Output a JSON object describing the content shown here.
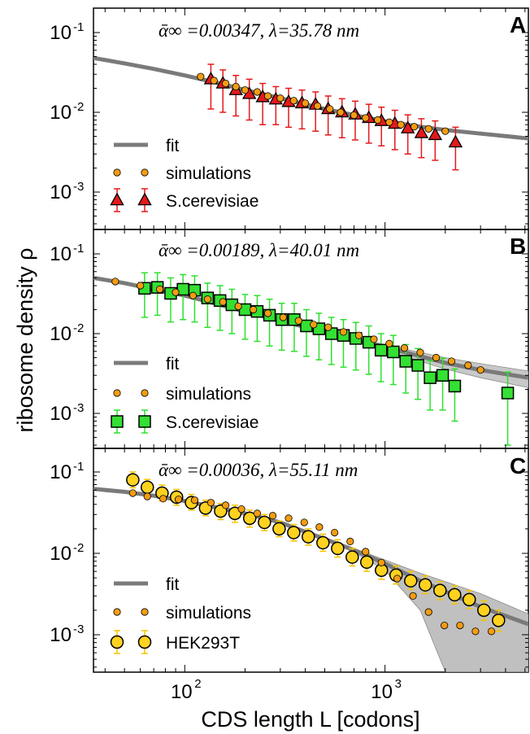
{
  "figure": {
    "ylabel": "ribosome density ρ",
    "xlabel": "CDS length L [codons]",
    "x_ticks": [
      "10^2",
      "10^3"
    ],
    "y_ticks": [
      "10^-1",
      "10^-2",
      "10^-3"
    ]
  },
  "chart_data": [
    {
      "type": "scatter",
      "panel_letter": "A",
      "annotation": "ᾱ∞ =0.00347, λ=35.78 nm",
      "x_scale": "log",
      "y_scale": "log",
      "xlim": [
        35,
        5200
      ],
      "ylim": [
        0.0005,
        0.2
      ],
      "legend": {
        "position": "bottom-left",
        "entries": [
          "fit",
          "simulations",
          "S.cerevisiae"
        ]
      },
      "colors": {
        "fit": "#7a7a7a",
        "simulations": "#f39c12",
        "experiment": "#e31a1c",
        "errorbar": "#e31a1c"
      },
      "series": [
        {
          "name": "fit",
          "kind": "line",
          "x": [
            35,
            50,
            70,
            100,
            150,
            200,
            300,
            500,
            700,
            1000,
            1500,
            2000,
            3000,
            5200
          ],
          "y": [
            0.048,
            0.041,
            0.035,
            0.029,
            0.023,
            0.019,
            0.015,
            0.011,
            0.0092,
            0.0077,
            0.0066,
            0.006,
            0.0054,
            0.0047
          ]
        },
        {
          "name": "simulations",
          "kind": "points",
          "x": [
            120,
            140,
            160,
            180,
            200,
            230,
            260,
            300,
            350,
            400,
            460,
            530,
            600,
            700,
            800,
            920,
            1050,
            1200,
            1400,
            1650,
            2000
          ],
          "y": [
            0.028,
            0.025,
            0.023,
            0.021,
            0.019,
            0.018,
            0.016,
            0.015,
            0.014,
            0.013,
            0.012,
            0.011,
            0.01,
            0.0092,
            0.0085,
            0.008,
            0.0075,
            0.007,
            0.0066,
            0.0062,
            0.0058
          ]
        },
        {
          "name": "S.cerevisiae",
          "kind": "markers",
          "marker": "triangle",
          "x": [
            135,
            155,
            180,
            210,
            245,
            285,
            330,
            385,
            450,
            520,
            610,
            710,
            830,
            960,
            1120,
            1300,
            1520,
            1780,
            2250
          ],
          "y": [
            0.026,
            0.023,
            0.019,
            0.017,
            0.0155,
            0.0145,
            0.0135,
            0.013,
            0.0125,
            0.011,
            0.01,
            0.0094,
            0.0085,
            0.0078,
            0.0072,
            0.0063,
            0.0055,
            0.0052,
            0.0042
          ],
          "err_low": [
            0.011,
            0.01,
            0.009,
            0.008,
            0.007,
            0.007,
            0.0065,
            0.0062,
            0.0058,
            0.0052,
            0.0048,
            0.0045,
            0.0041,
            0.0038,
            0.0034,
            0.003,
            0.0027,
            0.0025,
            0.0019
          ],
          "err_high": [
            0.04,
            0.034,
            0.029,
            0.026,
            0.023,
            0.021,
            0.02,
            0.019,
            0.018,
            0.016,
            0.0148,
            0.0138,
            0.0126,
            0.0116,
            0.0106,
            0.0093,
            0.0083,
            0.0078,
            0.0065
          ]
        }
      ]
    },
    {
      "type": "scatter",
      "panel_letter": "B",
      "annotation": "ᾱ∞ =0.00189, λ=40.01 nm",
      "x_scale": "log",
      "y_scale": "log",
      "xlim": [
        35,
        5200
      ],
      "ylim": [
        0.0004,
        0.2
      ],
      "legend": {
        "position": "bottom-left",
        "entries": [
          "fit",
          "simulations",
          "S.cerevisiae"
        ]
      },
      "colors": {
        "fit": "#7a7a7a",
        "band": "#c8c8c8",
        "simulations": "#f39c12",
        "experiment": "#33e033",
        "errorbar": "#2ee02e"
      },
      "series": [
        {
          "name": "fit",
          "kind": "line",
          "x": [
            35,
            50,
            70,
            100,
            150,
            200,
            300,
            500,
            700,
            1000,
            1500,
            2000,
            3000,
            5200
          ],
          "y": [
            0.05,
            0.043,
            0.036,
            0.03,
            0.023,
            0.019,
            0.0145,
            0.0105,
            0.0085,
            0.0068,
            0.0052,
            0.0043,
            0.0035,
            0.0028
          ],
          "band_low": [
            0.05,
            0.043,
            0.036,
            0.03,
            0.023,
            0.019,
            0.0143,
            0.0102,
            0.008,
            0.0062,
            0.0045,
            0.0036,
            0.0028,
            0.0021
          ],
          "band_high": [
            0.05,
            0.043,
            0.036,
            0.03,
            0.023,
            0.019,
            0.0147,
            0.0108,
            0.0089,
            0.0073,
            0.0058,
            0.005,
            0.0042,
            0.0034
          ]
        },
        {
          "name": "simulations",
          "kind": "points",
          "x": [
            45,
            60,
            75,
            90,
            110,
            130,
            155,
            185,
            220,
            260,
            310,
            370,
            440,
            520,
            620,
            740,
            880,
            1050,
            1250,
            1500,
            1800,
            2150,
            2600,
            3000
          ],
          "y": [
            0.045,
            0.04,
            0.036,
            0.033,
            0.03,
            0.027,
            0.025,
            0.022,
            0.02,
            0.018,
            0.016,
            0.0145,
            0.013,
            0.012,
            0.0105,
            0.0095,
            0.0085,
            0.0075,
            0.0066,
            0.0058,
            0.005,
            0.0045,
            0.004,
            0.0035
          ]
        },
        {
          "name": "S.cerevisiae",
          "kind": "markers",
          "marker": "square",
          "x": [
            63,
            73,
            85,
            98,
            112,
            130,
            150,
            172,
            200,
            230,
            265,
            305,
            352,
            405,
            468,
            540,
            620,
            715,
            830,
            955,
            1100,
            1270,
            1460,
            1680,
            1940,
            2230,
            4100
          ],
          "y": [
            0.037,
            0.038,
            0.032,
            0.036,
            0.035,
            0.028,
            0.026,
            0.023,
            0.02,
            0.019,
            0.017,
            0.015,
            0.015,
            0.0125,
            0.0115,
            0.01,
            0.0095,
            0.0087,
            0.0078,
            0.0062,
            0.0059,
            0.0045,
            0.004,
            0.0028,
            0.003,
            0.0022,
            0.0018
          ],
          "err_low": [
            0.016,
            0.017,
            0.014,
            0.015,
            0.014,
            0.012,
            0.011,
            0.01,
            0.0085,
            0.008,
            0.007,
            0.0062,
            0.006,
            0.0052,
            0.0047,
            0.0041,
            0.0038,
            0.0035,
            0.0031,
            0.0025,
            0.0023,
            0.0018,
            0.0015,
            0.0011,
            0.0011,
            0.0008,
            0.0004
          ],
          "err_high": [
            0.058,
            0.058,
            0.05,
            0.055,
            0.053,
            0.043,
            0.04,
            0.036,
            0.031,
            0.03,
            0.027,
            0.024,
            0.024,
            0.02,
            0.018,
            0.016,
            0.015,
            0.0138,
            0.0125,
            0.01,
            0.0095,
            0.0073,
            0.0065,
            0.0046,
            0.0049,
            0.0036,
            0.0033
          ]
        }
      ]
    },
    {
      "type": "scatter",
      "panel_letter": "C",
      "annotation": "ᾱ∞ =0.00036, λ=55.11 nm",
      "x_scale": "log",
      "y_scale": "log",
      "xlim": [
        35,
        5200
      ],
      "ylim": [
        0.00035,
        0.2
      ],
      "legend": {
        "position": "bottom-left",
        "entries": [
          "fit",
          "simulations",
          "HEK293T"
        ]
      },
      "colors": {
        "fit": "#7a7a7a",
        "band": "#c0c0c0",
        "simulations": "#f39c12",
        "experiment": "#ffd21f",
        "errorbar": "#f5c400"
      },
      "series": [
        {
          "name": "fit",
          "kind": "line",
          "x": [
            35,
            50,
            70,
            100,
            150,
            200,
            300,
            500,
            700,
            1000,
            1500,
            2000,
            3000,
            5200
          ],
          "y": [
            0.062,
            0.057,
            0.051,
            0.044,
            0.036,
            0.031,
            0.024,
            0.015,
            0.011,
            0.0075,
            0.0046,
            0.0034,
            0.0022,
            0.00135
          ],
          "band_low": [
            0.062,
            0.057,
            0.051,
            0.044,
            0.036,
            0.031,
            0.024,
            0.0148,
            0.0103,
            0.0062,
            0.002,
            0.00035,
            0.00035,
            0.00035
          ],
          "band_high": [
            0.062,
            0.057,
            0.051,
            0.044,
            0.036,
            0.031,
            0.024,
            0.0152,
            0.0115,
            0.0083,
            0.0057,
            0.0045,
            0.0032,
            0.0018
          ]
        },
        {
          "name": "simulations",
          "kind": "points",
          "x": [
            55,
            65,
            78,
            93,
            112,
            135,
            160,
            192,
            230,
            275,
            330,
            395,
            470,
            560,
            670,
            800,
            960,
            1150,
            1380,
            1650,
            1980,
            2370,
            2830,
            3400
          ],
          "y": [
            0.055,
            0.05,
            0.047,
            0.046,
            0.045,
            0.042,
            0.039,
            0.035,
            0.031,
            0.029,
            0.027,
            0.024,
            0.021,
            0.018,
            0.014,
            0.0105,
            0.0077,
            0.0049,
            0.003,
            0.0019,
            0.0013,
            0.0013,
            0.0011,
            0.0011
          ]
        },
        {
          "name": "HEK293T",
          "kind": "markers",
          "marker": "circle",
          "x": [
            55,
            65,
            77,
            91,
            108,
            127,
            151,
            178,
            211,
            250,
            296,
            350,
            414,
            490,
            580,
            686,
            811,
            960,
            1136,
            1344,
            1590,
            1882,
            2227,
            2635,
            3118,
            3690
          ],
          "y": [
            0.08,
            0.065,
            0.055,
            0.049,
            0.042,
            0.036,
            0.033,
            0.031,
            0.027,
            0.024,
            0.02,
            0.018,
            0.016,
            0.0135,
            0.0115,
            0.009,
            0.0078,
            0.0062,
            0.0054,
            0.0046,
            0.0041,
            0.0035,
            0.0031,
            0.0027,
            0.002,
            0.0015
          ],
          "err_low": [
            0.064,
            0.052,
            0.044,
            0.039,
            0.034,
            0.029,
            0.026,
            0.024,
            0.021,
            0.019,
            0.016,
            0.0142,
            0.0126,
            0.0106,
            0.009,
            0.007,
            0.006,
            0.0048,
            0.0042,
            0.0036,
            0.0032,
            0.0027,
            0.0024,
            0.0021,
            0.0015,
            0.0011
          ],
          "err_high": [
            0.1,
            0.081,
            0.069,
            0.061,
            0.053,
            0.045,
            0.041,
            0.039,
            0.034,
            0.03,
            0.025,
            0.0226,
            0.02,
            0.0172,
            0.0147,
            0.0115,
            0.01,
            0.008,
            0.007,
            0.006,
            0.0053,
            0.0045,
            0.004,
            0.0035,
            0.0026,
            0.002
          ]
        }
      ]
    }
  ]
}
